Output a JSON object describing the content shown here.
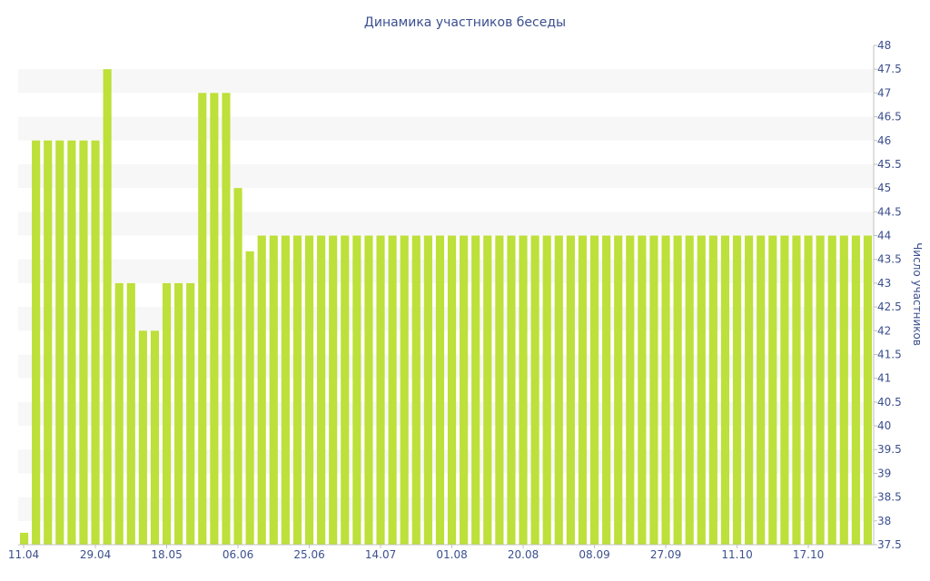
{
  "chart_data": {
    "type": "bar",
    "title": "Динамика участников беседы",
    "ylabel": "Число участников",
    "xlabel": "",
    "ylim": [
      37.5,
      48
    ],
    "ytick_step": 0.5,
    "y_axis_side": "right",
    "grid": "alternating horizontal bands",
    "legend": "none",
    "bar_color": "#bde03a",
    "band_color": "#f7f7f7",
    "text_color": "#3b4f8f",
    "x_tick_labels": [
      {
        "index": 0,
        "label": "11.04"
      },
      {
        "index": 6,
        "label": "29.04"
      },
      {
        "index": 12,
        "label": "18.05"
      },
      {
        "index": 18,
        "label": "06.06"
      },
      {
        "index": 24,
        "label": "25.06"
      },
      {
        "index": 30,
        "label": "14.07"
      },
      {
        "index": 36,
        "label": "01.08"
      },
      {
        "index": 42,
        "label": "20.08"
      },
      {
        "index": 48,
        "label": "08.09"
      },
      {
        "index": 54,
        "label": "27.09"
      },
      {
        "index": 60,
        "label": "11.10"
      },
      {
        "index": 66,
        "label": "17.10"
      }
    ],
    "values": [
      37.75,
      46,
      46,
      46,
      46,
      46,
      46,
      47.5,
      43,
      43,
      42,
      42,
      43,
      43,
      43,
      47,
      47,
      47,
      45,
      43.67,
      44,
      44,
      44,
      44,
      44,
      44,
      44,
      44,
      44,
      44,
      44,
      44,
      44,
      44,
      44,
      44,
      44,
      44,
      44,
      44,
      44,
      44,
      44,
      44,
      44,
      44,
      44,
      44,
      44,
      44,
      44,
      44,
      44,
      44,
      44,
      44,
      44,
      44,
      44,
      44,
      44,
      44,
      44,
      44,
      44,
      44,
      44,
      44,
      44,
      44,
      44,
      44
    ]
  }
}
